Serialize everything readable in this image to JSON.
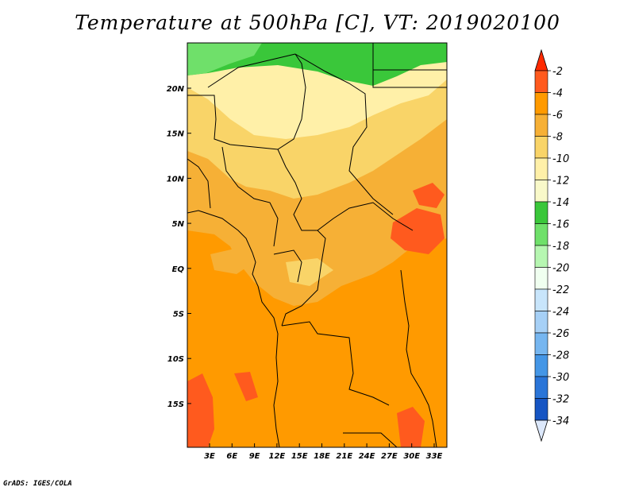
{
  "title": "Temperature at 500hPa [C], VT: 2019020100",
  "footer": "GrADS: IGES/COLA",
  "map": {
    "lat_labels": [
      "20N",
      "15N",
      "10N",
      "5N",
      "EQ",
      "5S",
      "10S",
      "15S"
    ],
    "lon_labels": [
      "3E",
      "6E",
      "9E",
      "12E",
      "15E",
      "18E",
      "21E",
      "24E",
      "27E",
      "30E",
      "33E"
    ]
  },
  "colorbar": {
    "labels": [
      "-2",
      "-4",
      "-6",
      "-8",
      "-10",
      "-12",
      "-14",
      "-16",
      "-18",
      "-20",
      "-22",
      "-24",
      "-26",
      "-28",
      "-30",
      "-32",
      "-34"
    ],
    "colors": [
      "#ff5a1e",
      "#ff9a00",
      "#f6b036",
      "#f9d468",
      "#fff0a8",
      "#f9f9c9",
      "#3ac73a",
      "#6fe06a",
      "#b6f6b1",
      "#f0fff0",
      "#c8e5fb",
      "#a6d0f6",
      "#76b6f0",
      "#4496e6",
      "#2a75d8",
      "#1655c3",
      "#0a33a0",
      "#0a1a78"
    ],
    "top_arrow_color": "#ff2a00",
    "bottom_arrow_color": "#dce8fb"
  }
}
